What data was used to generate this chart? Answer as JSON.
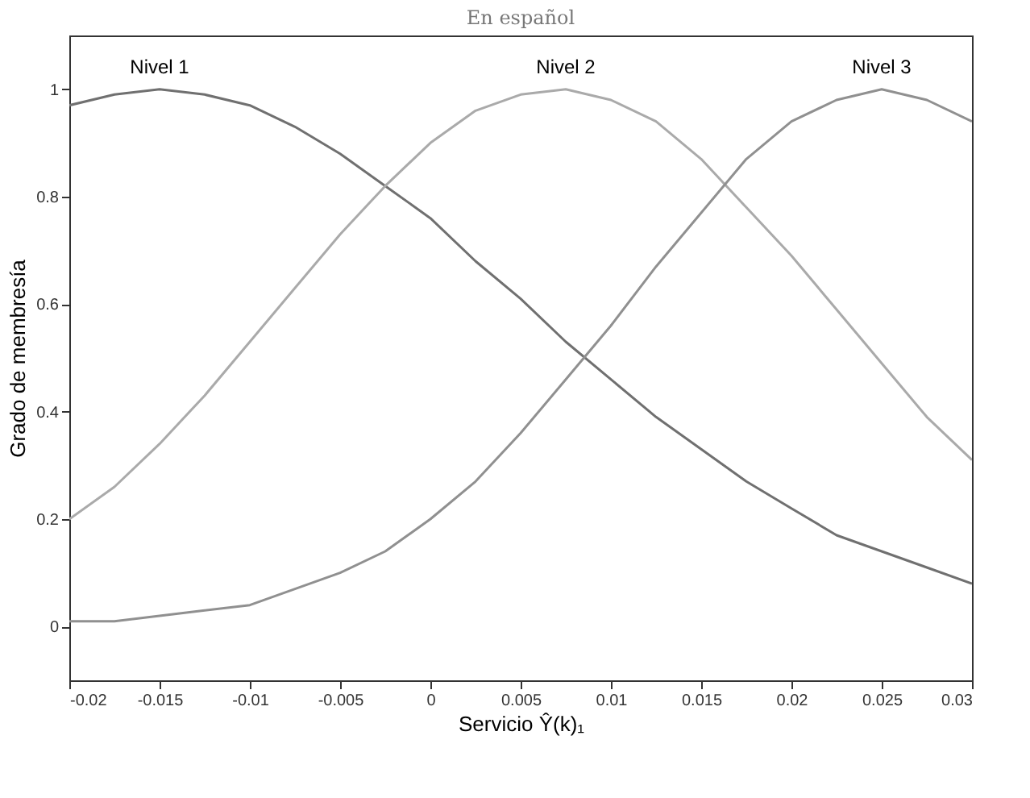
{
  "chart_data": {
    "type": "line",
    "title": "En español",
    "xlabel": "Servicio Ŷ(k)₁",
    "ylabel": "Grado de membresía",
    "x": [
      -0.02,
      -0.0175,
      -0.015,
      -0.0125,
      -0.01,
      -0.0075,
      -0.005,
      -0.0025,
      0,
      0.0025,
      0.005,
      0.0075,
      0.01,
      0.0125,
      0.015,
      0.0175,
      0.02,
      0.0225,
      0.025,
      0.0275,
      0.03
    ],
    "series": [
      {
        "name": "Nivel 1",
        "color": "#707070",
        "values": [
          0.97,
          0.99,
          1.0,
          0.99,
          0.97,
          0.93,
          0.88,
          0.82,
          0.76,
          0.68,
          0.61,
          0.53,
          0.46,
          0.39,
          0.33,
          0.27,
          0.22,
          0.17,
          0.14,
          0.11,
          0.08
        ]
      },
      {
        "name": "Nivel 2",
        "color": "#aaaaaa",
        "values": [
          0.2,
          0.26,
          0.34,
          0.43,
          0.53,
          0.63,
          0.73,
          0.82,
          0.9,
          0.96,
          0.99,
          1.0,
          0.98,
          0.94,
          0.87,
          0.78,
          0.69,
          0.59,
          0.49,
          0.39,
          0.31
        ]
      },
      {
        "name": "Nivel 3",
        "color": "#909090",
        "values": [
          0.01,
          0.01,
          0.02,
          0.03,
          0.04,
          0.07,
          0.1,
          0.14,
          0.2,
          0.27,
          0.36,
          0.46,
          0.56,
          0.67,
          0.77,
          0.87,
          0.94,
          0.98,
          1.0,
          0.98,
          0.94
        ]
      }
    ],
    "xlim": [
      -0.02,
      0.03
    ],
    "xticks": [
      -0.02,
      -0.015,
      -0.01,
      -0.005,
      0,
      0.005,
      0.01,
      0.015,
      0.02,
      0.025,
      0.03
    ],
    "ylim": [
      -0.1,
      1.1
    ],
    "yticks": [
      0,
      0.2,
      0.4,
      0.6,
      0.8,
      1
    ],
    "grid": false,
    "legend": false,
    "marker": "none",
    "line_style": "solid"
  }
}
